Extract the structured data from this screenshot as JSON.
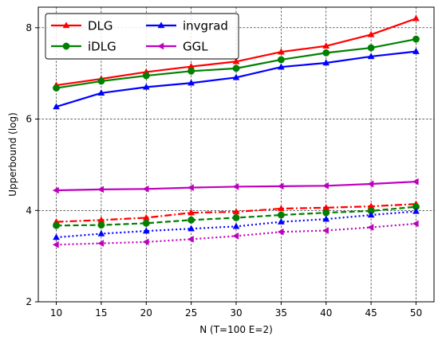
{
  "chart_data": {
    "type": "line",
    "title": "",
    "xlabel": "N (T=100 E=2)",
    "ylabel": "Upperbound (log)",
    "x": [
      10,
      15,
      20,
      25,
      30,
      35,
      40,
      45,
      50
    ],
    "xticks": [
      "10",
      "15",
      "20",
      "25",
      "30",
      "35",
      "40",
      "45",
      "50"
    ],
    "yticks": [
      "2",
      "4",
      "6",
      "8"
    ],
    "xlim": [
      8,
      52
    ],
    "ylim": [
      2,
      8.45
    ],
    "grid": true,
    "legend_placement": "top-left",
    "legend": [
      {
        "label": "DLG",
        "color": "#ff0000",
        "marker": "triangle-up"
      },
      {
        "label": "iDLG",
        "color": "#008000",
        "marker": "circle"
      },
      {
        "label": "invgrad",
        "color": "#0000ff",
        "marker": "triangle-up"
      },
      {
        "label": "GGL",
        "color": "#bf00bf",
        "marker": "triangle-left"
      }
    ],
    "series": [
      {
        "name": "DLG",
        "group": "upper",
        "color": "#ff0000",
        "marker": "triangle-up",
        "linestyle": "solid",
        "values": [
          6.74,
          6.88,
          7.03,
          7.15,
          7.26,
          7.47,
          7.6,
          7.85,
          8.2
        ]
      },
      {
        "name": "iDLG",
        "group": "upper",
        "color": "#008000",
        "marker": "circle",
        "linestyle": "solid",
        "values": [
          6.68,
          6.83,
          6.95,
          7.05,
          7.11,
          7.3,
          7.45,
          7.56,
          7.75
        ]
      },
      {
        "name": "invgrad",
        "group": "upper",
        "color": "#0000ff",
        "marker": "triangle-up",
        "linestyle": "solid",
        "values": [
          6.27,
          6.57,
          6.7,
          6.79,
          6.91,
          7.14,
          7.23,
          7.37,
          7.48
        ]
      },
      {
        "name": "GGL",
        "group": "upper",
        "color": "#bf00bf",
        "marker": "triangle-left",
        "linestyle": "solid",
        "values": [
          4.44,
          4.46,
          4.47,
          4.5,
          4.52,
          4.53,
          4.54,
          4.58,
          4.63
        ]
      },
      {
        "name": "DLG",
        "group": "lower",
        "color": "#ff0000",
        "marker": "triangle-up",
        "linestyle": "dashdot",
        "values": [
          3.75,
          3.79,
          3.84,
          3.95,
          3.97,
          4.04,
          4.06,
          4.09,
          4.14
        ]
      },
      {
        "name": "iDLG",
        "group": "lower",
        "color": "#008000",
        "marker": "circle",
        "linestyle": "dashed",
        "values": [
          3.67,
          3.68,
          3.72,
          3.79,
          3.84,
          3.9,
          3.95,
          3.99,
          4.08
        ]
      },
      {
        "name": "invgrad",
        "group": "lower",
        "color": "#0000ff",
        "marker": "triangle-up",
        "linestyle": "dotted",
        "values": [
          3.41,
          3.49,
          3.55,
          3.6,
          3.65,
          3.75,
          3.81,
          3.9,
          3.98
        ]
      },
      {
        "name": "GGL",
        "group": "lower",
        "color": "#bf00bf",
        "marker": "triangle-left",
        "linestyle": "dotted",
        "values": [
          3.25,
          3.28,
          3.31,
          3.37,
          3.44,
          3.53,
          3.56,
          3.63,
          3.71
        ]
      }
    ]
  }
}
